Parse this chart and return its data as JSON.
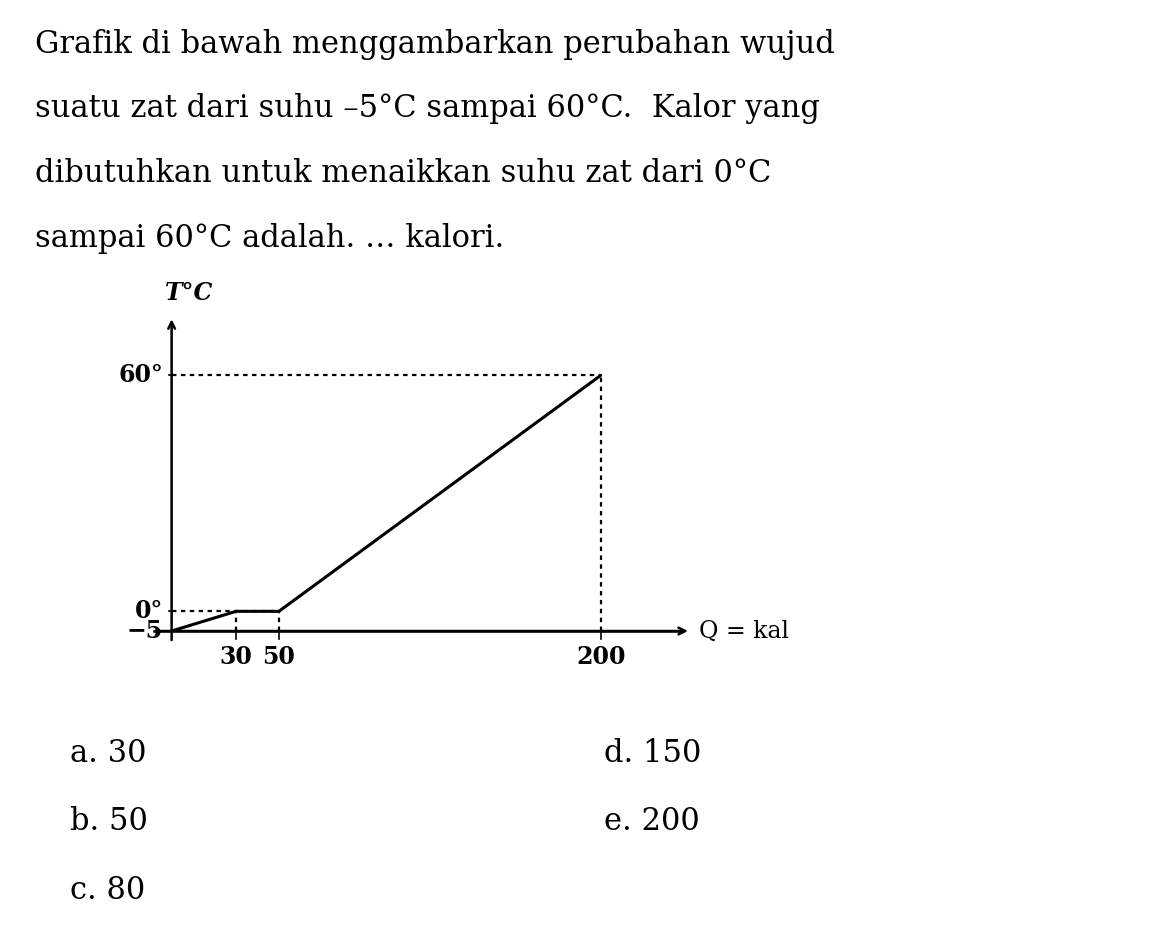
{
  "graph_points_x": [
    0,
    30,
    50,
    200
  ],
  "graph_points_y": [
    -5,
    0,
    0,
    60
  ],
  "ylabel": "T°C",
  "xlabel": "Q = kal",
  "ytick_labels": [
    "60°",
    "0°",
    "-5"
  ],
  "ytick_values": [
    60,
    0,
    -5
  ],
  "xtick_labels": [
    "30",
    "50",
    "200"
  ],
  "xtick_values": [
    30,
    50,
    200
  ],
  "bg_color": "#ffffff",
  "line_color": "#000000",
  "dotted_color": "#000000",
  "text_color": "#000000",
  "title_line1": "Grafik di bawah menggambarkan perubahan wujud",
  "title_line2": "suatu zat dari suhu –5°C sampai 60°C.  Kalor yang",
  "title_line3": "dibutuhkan untuk menaikkan suhu zat dari 0°C",
  "title_line4": "sampai 60°C adalah. … kalori.",
  "ans_left": [
    "a. 30",
    "b. 50",
    "c. 80"
  ],
  "ans_right": [
    "d. 150",
    "e. 200"
  ],
  "fontsize_title": 22,
  "fontsize_axis_label": 17,
  "fontsize_tick": 17,
  "fontsize_answer": 22
}
